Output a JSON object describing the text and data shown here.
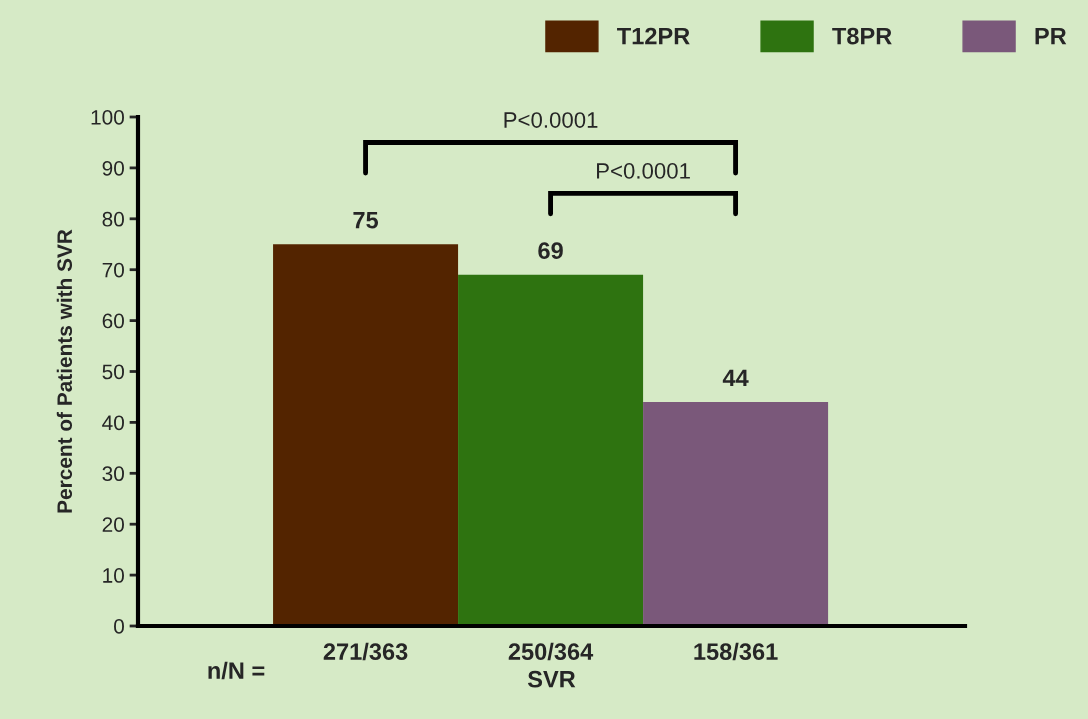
{
  "chart_data": {
    "type": "bar",
    "xlabel": "SVR",
    "ylabel": "Percent of Patients with SVR",
    "categories": [
      "271/363",
      "250/364",
      "158/361"
    ],
    "series": [
      {
        "name": "T12PR",
        "color": "#532400",
        "values": [
          75,
          null,
          null
        ]
      },
      {
        "name": "T8PR",
        "color": "#2e7310",
        "values": [
          null,
          69,
          null
        ]
      },
      {
        "name": "PR",
        "color": "#7a587a",
        "values": [
          null,
          null,
          44
        ]
      }
    ],
    "ylim": [
      0,
      100
    ],
    "yticks": [
      0,
      10,
      20,
      30,
      40,
      50,
      60,
      70,
      80,
      90,
      100
    ],
    "data_labels": true,
    "grid": false,
    "legend": "top right",
    "annotations": [
      "n/N =",
      "P<0.0001",
      "P<0.0001"
    ]
  }
}
